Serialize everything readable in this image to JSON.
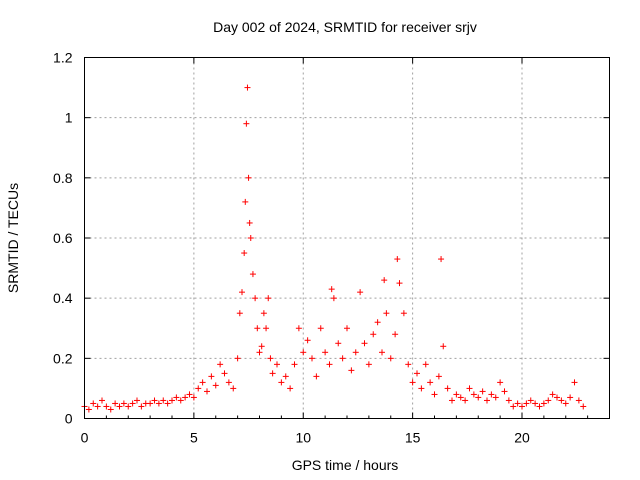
{
  "chart_data": {
    "type": "scatter",
    "title": "Day 002 of 2024, SRMTID for receiver srjv",
    "xlabel": "GPS time / hours",
    "ylabel": "SRMTID / TECUs",
    "xlim": [
      0,
      24
    ],
    "ylim": [
      0,
      1.2
    ],
    "xticks": [
      0,
      5,
      10,
      15,
      20
    ],
    "xtick_labels": [
      "0",
      "5",
      "10",
      "15",
      "20"
    ],
    "yticks": [
      0,
      0.2,
      0.4,
      0.6,
      0.8,
      1.0,
      1.2
    ],
    "ytick_labels": [
      "0",
      "0.2",
      "0.4",
      "0.6",
      "0.8",
      "1",
      "1.2"
    ],
    "grid": true,
    "marker": "+",
    "color": "#ff0000",
    "series": [
      {
        "name": "srjv",
        "x": [
          0.0,
          0.2,
          0.4,
          0.6,
          0.8,
          1.0,
          1.2,
          1.4,
          1.6,
          1.8,
          2.0,
          2.2,
          2.4,
          2.6,
          2.8,
          3.0,
          3.2,
          3.4,
          3.6,
          3.8,
          4.0,
          4.2,
          4.4,
          4.6,
          4.8,
          5.0,
          5.2,
          5.4,
          5.6,
          5.8,
          6.0,
          6.2,
          6.4,
          6.6,
          6.8,
          7.0,
          7.1,
          7.2,
          7.3,
          7.35,
          7.4,
          7.45,
          7.5,
          7.55,
          7.6,
          7.7,
          7.8,
          7.9,
          8.0,
          8.1,
          8.2,
          8.3,
          8.4,
          8.5,
          8.6,
          8.8,
          9.0,
          9.2,
          9.4,
          9.6,
          9.8,
          10.0,
          10.2,
          10.4,
          10.6,
          10.8,
          11.0,
          11.2,
          11.3,
          11.4,
          11.6,
          11.8,
          12.0,
          12.2,
          12.4,
          12.6,
          12.8,
          13.0,
          13.2,
          13.4,
          13.6,
          13.7,
          13.8,
          14.0,
          14.2,
          14.3,
          14.4,
          14.6,
          14.8,
          15.0,
          15.2,
          15.4,
          15.6,
          15.8,
          16.0,
          16.2,
          16.3,
          16.4,
          16.6,
          16.8,
          17.0,
          17.2,
          17.4,
          17.6,
          17.8,
          18.0,
          18.2,
          18.4,
          18.6,
          18.8,
          19.0,
          19.2,
          19.4,
          19.6,
          19.8,
          20.0,
          20.2,
          20.4,
          20.6,
          20.8,
          21.0,
          21.2,
          21.4,
          21.6,
          21.8,
          22.0,
          22.2,
          22.4,
          22.6,
          22.8
        ],
        "y": [
          0.04,
          0.03,
          0.05,
          0.04,
          0.06,
          0.04,
          0.03,
          0.05,
          0.04,
          0.05,
          0.04,
          0.05,
          0.06,
          0.04,
          0.05,
          0.05,
          0.06,
          0.05,
          0.06,
          0.05,
          0.06,
          0.07,
          0.06,
          0.07,
          0.08,
          0.07,
          0.1,
          0.12,
          0.09,
          0.14,
          0.11,
          0.18,
          0.15,
          0.12,
          0.1,
          0.2,
          0.35,
          0.42,
          0.55,
          0.72,
          0.98,
          1.1,
          0.8,
          0.65,
          0.6,
          0.48,
          0.4,
          0.3,
          0.22,
          0.24,
          0.35,
          0.3,
          0.4,
          0.2,
          0.15,
          0.18,
          0.12,
          0.14,
          0.1,
          0.18,
          0.3,
          0.22,
          0.26,
          0.2,
          0.14,
          0.3,
          0.22,
          0.18,
          0.43,
          0.4,
          0.25,
          0.2,
          0.3,
          0.16,
          0.22,
          0.42,
          0.25,
          0.18,
          0.28,
          0.32,
          0.22,
          0.46,
          0.35,
          0.2,
          0.28,
          0.53,
          0.45,
          0.35,
          0.18,
          0.12,
          0.15,
          0.1,
          0.18,
          0.12,
          0.08,
          0.14,
          0.53,
          0.24,
          0.1,
          0.06,
          0.08,
          0.07,
          0.06,
          0.1,
          0.08,
          0.07,
          0.09,
          0.06,
          0.08,
          0.07,
          0.12,
          0.09,
          0.06,
          0.04,
          0.05,
          0.04,
          0.05,
          0.06,
          0.05,
          0.04,
          0.05,
          0.06,
          0.08,
          0.07,
          0.06,
          0.05,
          0.07,
          0.12,
          0.06,
          0.04
        ]
      }
    ]
  }
}
